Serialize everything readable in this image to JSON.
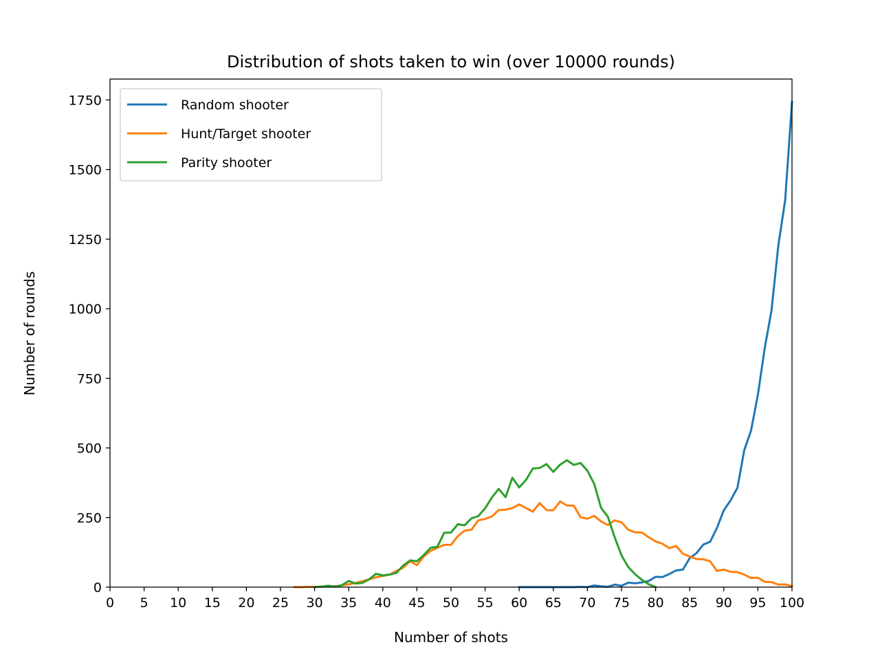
{
  "chart_data": {
    "type": "line",
    "title": "Distribution of shots taken to win (over 10000 rounds)",
    "xlabel": "Number of shots",
    "ylabel": "Number of rounds",
    "xlim": [
      0,
      100
    ],
    "ylim": [
      0,
      1825
    ],
    "xticks": [
      0,
      5,
      10,
      15,
      20,
      25,
      30,
      35,
      40,
      45,
      50,
      55,
      60,
      65,
      70,
      75,
      80,
      85,
      90,
      95,
      100
    ],
    "yticks": [
      0,
      250,
      500,
      750,
      1000,
      1250,
      1500,
      1750
    ],
    "grid": false,
    "legend_position": "upper-left",
    "series": [
      {
        "name": "Random shooter",
        "color": "#1f77b4",
        "x": [
          60,
          61,
          62,
          63,
          64,
          65,
          66,
          67,
          68,
          69,
          70,
          71,
          72,
          73,
          74,
          75,
          76,
          77,
          78,
          79,
          80,
          81,
          82,
          83,
          84,
          85,
          86,
          87,
          88,
          89,
          90,
          91,
          92,
          93,
          94,
          95,
          96,
          97,
          98,
          99,
          100
        ],
        "y": [
          0,
          0,
          0,
          0,
          0,
          0,
          0,
          0,
          0,
          1,
          0,
          6,
          3,
          1,
          9,
          5,
          16,
          14,
          17,
          22,
          37,
          36,
          47,
          60,
          63,
          104,
          122,
          153,
          163,
          213,
          276,
          312,
          357,
          492,
          563,
          691,
          858,
          995,
          1228,
          1390,
          1743
        ]
      },
      {
        "name": "Hunt/Target shooter",
        "color": "#ff7f0e",
        "x": [
          27,
          28,
          29,
          30,
          31,
          32,
          33,
          34,
          35,
          36,
          37,
          38,
          39,
          40,
          41,
          42,
          43,
          44,
          45,
          46,
          47,
          48,
          49,
          50,
          51,
          52,
          53,
          54,
          55,
          56,
          57,
          58,
          59,
          60,
          61,
          62,
          63,
          64,
          65,
          66,
          67,
          68,
          69,
          70,
          71,
          72,
          73,
          74,
          75,
          76,
          77,
          78,
          79,
          80,
          81,
          82,
          83,
          84,
          85,
          86,
          87,
          88,
          89,
          90,
          91,
          92,
          93,
          94,
          95,
          96,
          97,
          98,
          99,
          100
        ],
        "y": [
          0,
          0,
          1,
          1,
          2,
          4,
          3,
          6,
          10,
          15,
          21,
          28,
          35,
          40,
          45,
          58,
          70,
          93,
          79,
          110,
          130,
          141,
          152,
          152,
          183,
          203,
          206,
          240,
          245,
          254,
          277,
          278,
          284,
          297,
          284,
          271,
          302,
          277,
          276,
          308,
          293,
          293,
          251,
          246,
          256,
          236,
          223,
          240,
          233,
          206,
          197,
          196,
          179,
          164,
          156,
          140,
          148,
          120,
          110,
          101,
          100,
          93,
          58,
          63,
          55,
          54,
          45,
          33,
          34,
          19,
          18,
          9,
          10,
          3
        ]
      },
      {
        "name": "Parity shooter",
        "color": "#2ca02c",
        "x": [
          30,
          31,
          32,
          33,
          34,
          35,
          36,
          37,
          38,
          39,
          40,
          41,
          42,
          43,
          44,
          45,
          46,
          47,
          48,
          49,
          50,
          51,
          52,
          53,
          54,
          55,
          56,
          57,
          58,
          59,
          60,
          61,
          62,
          63,
          64,
          65,
          66,
          67,
          68,
          69,
          70,
          71,
          72,
          73,
          74,
          75,
          76,
          77,
          78,
          79,
          80
        ],
        "y": [
          0,
          2,
          5,
          2,
          7,
          22,
          13,
          15,
          28,
          48,
          42,
          45,
          51,
          78,
          96,
          93,
          115,
          141,
          145,
          195,
          196,
          226,
          222,
          247,
          255,
          283,
          322,
          353,
          323,
          393,
          358,
          385,
          426,
          428,
          442,
          414,
          440,
          456,
          439,
          446,
          418,
          371,
          285,
          253,
          179,
          114,
          72,
          46,
          26,
          10,
          0
        ]
      }
    ]
  }
}
